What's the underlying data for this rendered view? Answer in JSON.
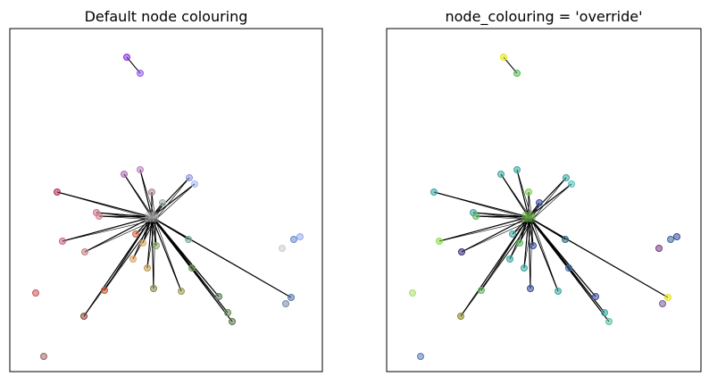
{
  "panels": [
    {
      "title": "Default node colouring"
    },
    {
      "title": "node_colouring = 'override'"
    }
  ]
}
